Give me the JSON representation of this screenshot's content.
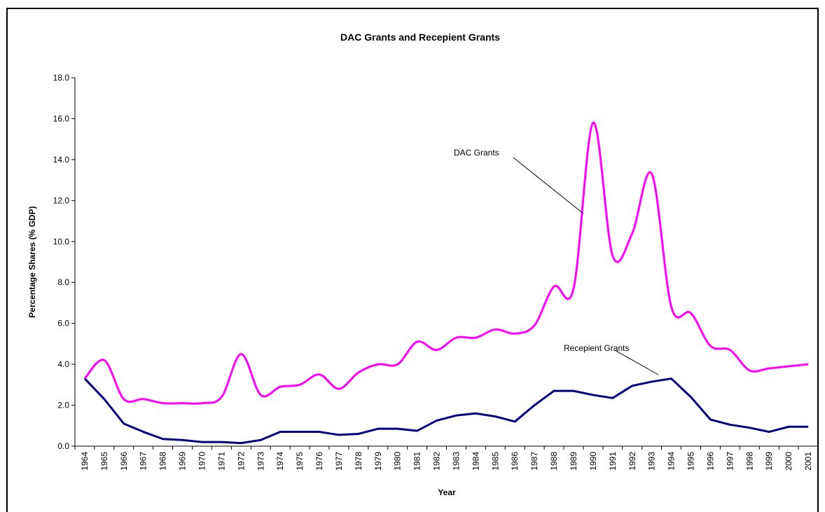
{
  "chart_data": {
    "type": "line",
    "title": "DAC Grants and Recepient Grants",
    "xlabel": "Year",
    "ylabel": "Percentage Shares (% GDP)",
    "categories": [
      "1964",
      "1965",
      "1966",
      "1967",
      "1968",
      "1969",
      "1970",
      "1971",
      "1972",
      "1973",
      "1974",
      "1975",
      "1976",
      "1977",
      "1978",
      "1979",
      "1980",
      "1981",
      "1982",
      "1983",
      "1984",
      "1985",
      "1986",
      "1987",
      "1988",
      "1989",
      "1990",
      "1991",
      "1992",
      "1993",
      "1994",
      "1995",
      "1996",
      "1997",
      "1998",
      "1999",
      "2000",
      "2001"
    ],
    "series": [
      {
        "name": "DAC Grants",
        "color": "#ff00ff",
        "smooth": true,
        "values": [
          3.3,
          4.2,
          2.3,
          2.3,
          2.1,
          2.1,
          2.1,
          2.4,
          4.5,
          2.5,
          2.9,
          3.0,
          3.5,
          2.8,
          3.6,
          4.0,
          4.0,
          5.1,
          4.7,
          5.3,
          5.3,
          5.7,
          5.5,
          5.9,
          7.8,
          7.7,
          15.8,
          9.3,
          10.4,
          13.3,
          6.8,
          6.5,
          4.9,
          4.7,
          3.7,
          3.8,
          3.9,
          4.0
        ]
      },
      {
        "name": "Recepient Grants",
        "color": "#000080",
        "smooth": false,
        "values": [
          3.3,
          2.3,
          1.1,
          0.7,
          0.35,
          0.3,
          0.2,
          0.2,
          0.15,
          0.3,
          0.7,
          0.7,
          0.7,
          0.55,
          0.6,
          0.85,
          0.85,
          0.75,
          1.25,
          1.5,
          1.6,
          1.45,
          1.2,
          2.0,
          2.7,
          2.7,
          2.5,
          2.35,
          2.95,
          3.15,
          3.3,
          2.4,
          1.3,
          1.05,
          0.9,
          0.7,
          0.95,
          0.95
        ]
      }
    ],
    "ylim": [
      0,
      18
    ],
    "yticks": [
      {
        "value": 0,
        "label": "0.0"
      },
      {
        "value": 2,
        "label": "2.0"
      },
      {
        "value": 4,
        "label": "4.0"
      },
      {
        "value": 6,
        "label": "6.0"
      },
      {
        "value": 8,
        "label": "8.0"
      },
      {
        "value": 10,
        "label": "10.0"
      },
      {
        "value": 12,
        "label": "12.0"
      },
      {
        "value": 14,
        "label": "14.0"
      },
      {
        "value": 16,
        "label": "16.0"
      },
      {
        "value": 18,
        "label": "18.0"
      }
    ],
    "grid": false
  }
}
